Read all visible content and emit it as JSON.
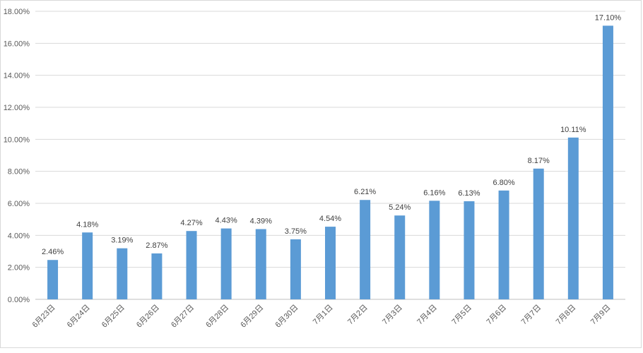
{
  "chart_data": {
    "type": "bar",
    "categories": [
      "6月23日",
      "6月24日",
      "6月25日",
      "6月26日",
      "6月27日",
      "6月28日",
      "6月29日",
      "6月30日",
      "7月1日",
      "7月2日",
      "7月3日",
      "7月4日",
      "7月5日",
      "7月6日",
      "7月7日",
      "7月8日",
      "7月9日"
    ],
    "values": [
      2.46,
      4.18,
      3.19,
      2.87,
      4.27,
      4.43,
      4.39,
      3.75,
      4.54,
      6.21,
      5.24,
      6.16,
      6.13,
      6.8,
      8.17,
      10.11,
      17.1
    ],
    "data_labels": [
      "2.46%",
      "4.18%",
      "3.19%",
      "2.87%",
      "4.27%",
      "4.43%",
      "4.39%",
      "3.75%",
      "4.54%",
      "6.21%",
      "5.24%",
      "6.16%",
      "6.13%",
      "6.80%",
      "8.17%",
      "10.11%",
      "17.10%"
    ],
    "yticks": [
      0,
      2,
      4,
      6,
      8,
      10,
      12,
      14,
      16,
      18
    ],
    "ytick_labels": [
      "0.00%",
      "2.00%",
      "4.00%",
      "6.00%",
      "8.00%",
      "10.00%",
      "12.00%",
      "14.00%",
      "16.00%",
      "18.00%"
    ],
    "ylim": [
      0,
      18
    ],
    "grid": true,
    "legend": "none",
    "bar_color": "#5b9bd5",
    "title": "",
    "xlabel": "",
    "ylabel": ""
  }
}
